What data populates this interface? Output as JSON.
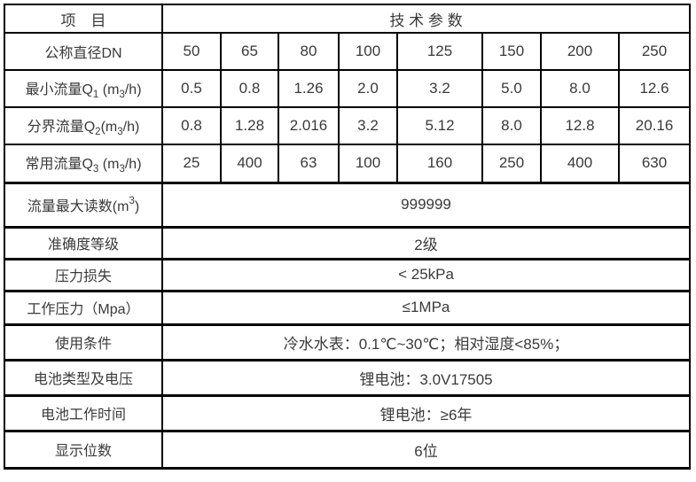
{
  "table": {
    "header": {
      "item": "项　目",
      "params": "技 术 参 数"
    },
    "rows": {
      "dn": {
        "label": "公称直径DN",
        "values": [
          "50",
          "65",
          "80",
          "100",
          "125",
          "150",
          "200",
          "250"
        ]
      },
      "q1": {
        "label": "最小流量Q₁ (m₃/h)",
        "values": [
          "0.5",
          "0.8",
          "1.26",
          "2.0",
          "3.2",
          "5.0",
          "8.0",
          "12.6"
        ]
      },
      "q2": {
        "label": "分界流量Q₂(m₃/h)",
        "values": [
          "0.8",
          "1.28",
          "2.016",
          "3.2",
          "5.12",
          "8.0",
          "12.8",
          "20.16"
        ]
      },
      "q3": {
        "label": "常用流量Q₃ (m₃/h)",
        "values": [
          "25",
          "400",
          "63",
          "100",
          "160",
          "250",
          "400",
          "630"
        ]
      },
      "max_reading": {
        "label": "流量最大读数(m³)",
        "value": "999999"
      },
      "accuracy": {
        "label": "准确度等级",
        "value": "2级"
      },
      "pressure_loss": {
        "label": "压力损失",
        "value": "< 25kPa"
      },
      "working_pressure": {
        "label": "工作压力（Mpa）",
        "value": "≤1MPa"
      },
      "conditions": {
        "label": "使用条件",
        "value": "冷水水表：0.1℃~30℃；相对湿度<85%；"
      },
      "battery": {
        "label": "电池类型及电压",
        "value": "锂电池：3.0V17505"
      },
      "battery_life": {
        "label": "电池工作时间",
        "value": "锂电池：≥6年"
      },
      "digits": {
        "label": "显示位数",
        "value": "6位"
      }
    }
  }
}
